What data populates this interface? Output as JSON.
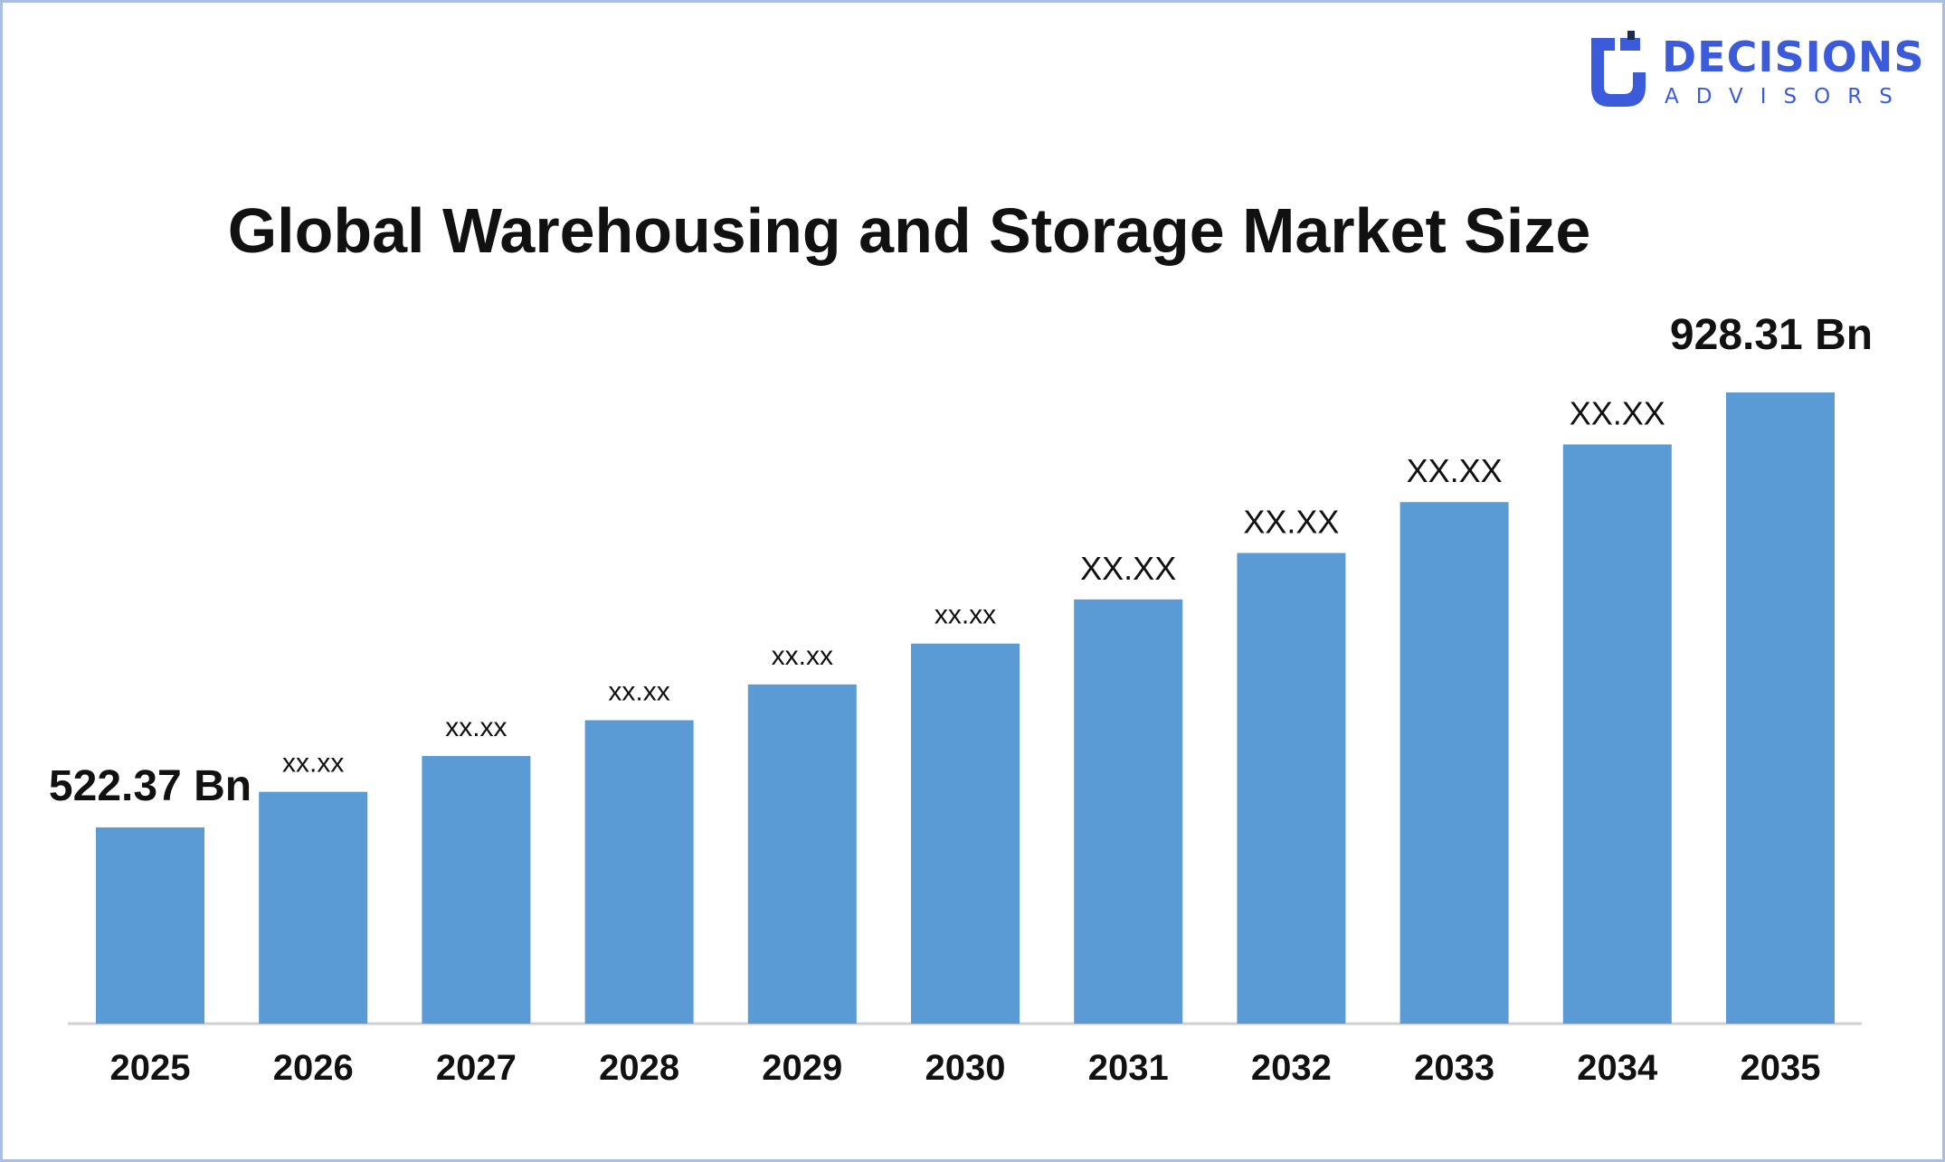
{
  "brand": {
    "name": "DECISIONS",
    "tagline": "ADVISORS",
    "color": "#3b5bdb",
    "icon": "decisions-advisors-logo-icon"
  },
  "chart_data": {
    "type": "bar",
    "title": "Global Warehousing and Storage Market Size",
    "xlabel": "",
    "ylabel": "",
    "categories": [
      "2025",
      "2026",
      "2027",
      "2028",
      "2029",
      "2030",
      "2031",
      "2032",
      "2033",
      "2034",
      "2035"
    ],
    "values": [
      522.37,
      586,
      650,
      714,
      778,
      851,
      930,
      1013,
      1104,
      1207,
      928.31
    ],
    "data_labels": [
      "522.37 Bn",
      "xx.xx",
      "xx.xx",
      "xx.xx",
      "xx.xx",
      "xx.xx",
      "XX.XX",
      "XX.XX",
      "XX.XX",
      "XX.XX",
      "928.31 Bn"
    ],
    "bar_color": "#5b9bd5",
    "axis_color": "#d0d0d0",
    "grid": false,
    "legend": "none"
  }
}
